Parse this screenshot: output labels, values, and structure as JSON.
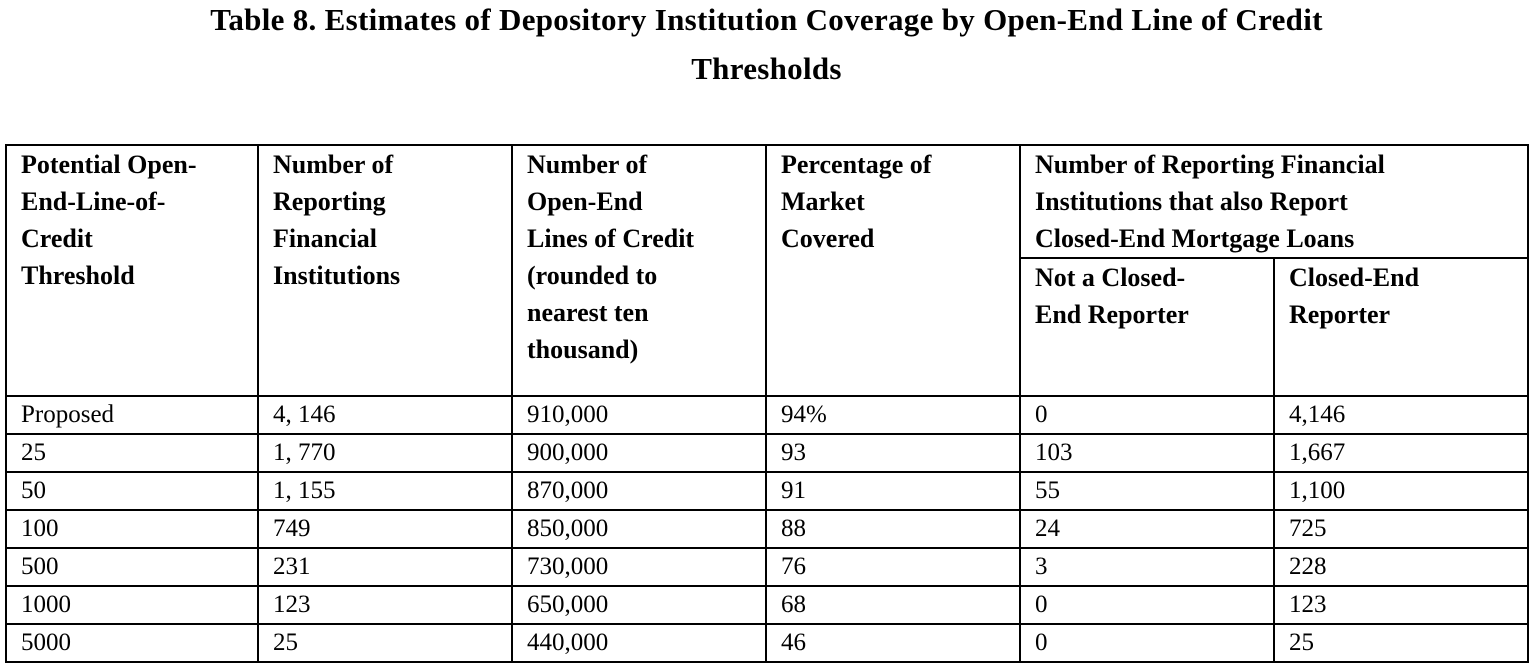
{
  "title": {
    "line1": "Table 8.  Estimates of Depository Institution Coverage by Open-End Line of Credit",
    "line2": "Thresholds"
  },
  "table": {
    "headers": {
      "threshold": [
        "Potential Open-",
        "End-Line-of-",
        "Credit",
        "Threshold"
      ],
      "institutions": [
        "Number of",
        "Reporting",
        "Financial",
        "Institutions"
      ],
      "lines": [
        "Number of",
        "Open-End",
        "Lines of Credit",
        "(rounded to",
        "nearest ten",
        "thousand)"
      ],
      "market": [
        "Percentage of",
        "Market",
        "Covered"
      ],
      "group": [
        "Number of Reporting Financial",
        "Institutions that also Report",
        "Closed-End Mortgage Loans"
      ],
      "not_closed_end": [
        "Not a Closed-",
        "End Reporter"
      ],
      "closed_end": [
        "Closed-End",
        "Reporter"
      ]
    },
    "rows": [
      [
        "Proposed",
        "4, 146",
        "910,000",
        "94%",
        "0",
        "4,146"
      ],
      [
        "25",
        "1, 770",
        "900,000",
        "93",
        "103",
        "1,667"
      ],
      [
        "50",
        "1, 155",
        "870,000",
        "91",
        "55",
        "1,100"
      ],
      [
        "100",
        "749",
        "850,000",
        "88",
        "24",
        "725"
      ],
      [
        "500",
        "231",
        "730,000",
        "76",
        "3",
        "228"
      ],
      [
        "1000",
        "123",
        "650,000",
        "68",
        "0",
        "123"
      ],
      [
        "5000",
        "25",
        "440,000",
        "46",
        "0",
        "25"
      ]
    ]
  }
}
